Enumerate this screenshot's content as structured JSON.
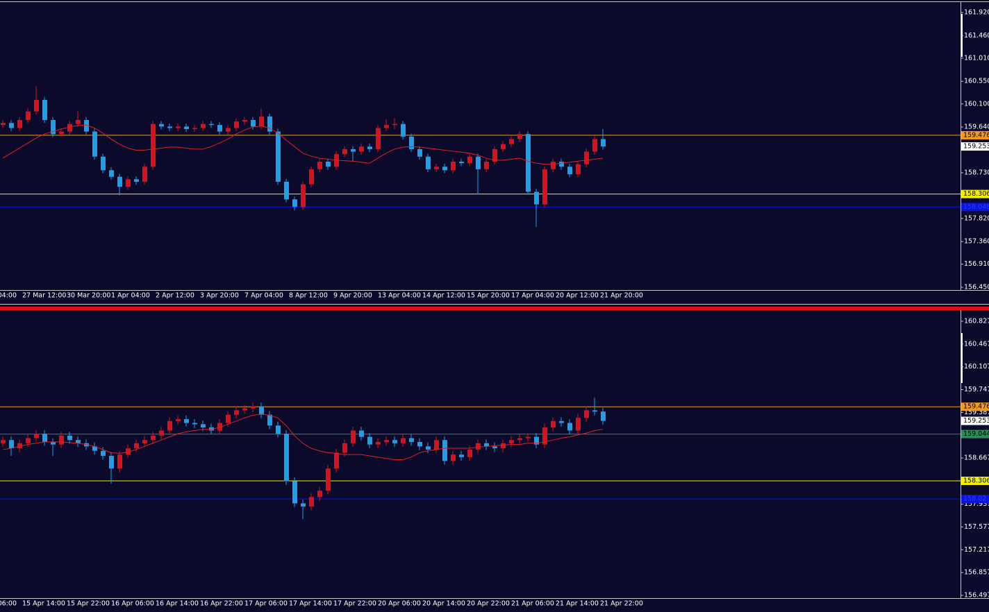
{
  "chart_data": [
    {
      "type": "candlestick",
      "up_color": "#d8121c",
      "down_color": "#1f9fe8",
      "ylim": [
        156.395,
        162.127
      ],
      "yticks": [
        {
          "value": 161.92,
          "label": "161.920"
        },
        {
          "value": 161.46,
          "label": "161.460"
        },
        {
          "value": 161.01,
          "label": "161.010"
        },
        {
          "value": 160.55,
          "label": "160.550"
        },
        {
          "value": 160.1,
          "label": "160.100"
        },
        {
          "value": 159.64,
          "label": "159.640"
        },
        {
          "value": 158.73,
          "label": "158.730"
        },
        {
          "value": 157.82,
          "label": "157.820"
        },
        {
          "value": 157.36,
          "label": "157.360"
        },
        {
          "value": 156.91,
          "label": "156.910"
        },
        {
          "value": 156.45,
          "label": "156.450"
        }
      ],
      "x_labels": [
        "04:00",
        "27 Mar 12:00",
        "30 Mar 20:00",
        "1 Apr 04:00",
        "2 Apr 12:00",
        "3 Apr 20:00",
        "7 Apr 04:00",
        "8 Apr 12:00",
        "9 Apr 20:00",
        "13 Apr 04:00",
        "14 Apr 12:00",
        "15 Apr 20:00",
        "17 Apr 04:00",
        "20 Apr 12:00",
        "21 Apr 20:00"
      ],
      "open": [
        159.68,
        159.72,
        159.62,
        159.78,
        159.95,
        160.18,
        159.78,
        159.5,
        159.55,
        159.7,
        159.78,
        159.55,
        159.05,
        158.78,
        158.65,
        158.45,
        158.6,
        158.55,
        158.85,
        159.7,
        159.65,
        159.62,
        159.65,
        159.6,
        159.62,
        159.7,
        159.68,
        159.55,
        159.62,
        159.75,
        159.78,
        159.65,
        159.85,
        159.55,
        158.55,
        158.2,
        158.05,
        158.5,
        158.8,
        158.95,
        158.85,
        159.1,
        159.2,
        159.15,
        159.25,
        159.2,
        159.62,
        159.68,
        159.7,
        159.45,
        159.2,
        159.05,
        158.8,
        158.85,
        158.78,
        158.95,
        158.92,
        159.05,
        158.8,
        158.95,
        159.2,
        159.3,
        159.4,
        159.5,
        158.35,
        158.1,
        158.8,
        158.95,
        158.85,
        158.7,
        158.9,
        159.15,
        159.4
      ],
      "high": [
        159.78,
        159.78,
        159.84,
        160.01,
        160.45,
        160.24,
        159.84,
        159.61,
        159.76,
        159.95,
        159.84,
        159.61,
        159.11,
        158.84,
        158.71,
        158.66,
        158.66,
        158.91,
        159.76,
        159.76,
        159.71,
        159.71,
        159.71,
        159.68,
        159.76,
        159.76,
        159.74,
        159.68,
        159.81,
        159.84,
        159.84,
        160.0,
        159.91,
        159.61,
        158.61,
        158.26,
        158.56,
        158.86,
        159.01,
        159.01,
        159.16,
        159.26,
        159.26,
        159.31,
        159.31,
        159.68,
        159.8,
        159.82,
        159.76,
        159.51,
        159.26,
        159.11,
        158.91,
        158.91,
        159.01,
        159.01,
        159.11,
        159.11,
        159.01,
        159.26,
        159.36,
        159.46,
        159.56,
        159.56,
        158.41,
        158.86,
        159.01,
        159.01,
        158.91,
        158.96,
        159.21,
        159.46,
        159.6
      ],
      "low": [
        159.62,
        159.56,
        159.56,
        159.72,
        159.89,
        159.72,
        159.44,
        159.44,
        159.49,
        159.64,
        159.49,
        158.99,
        158.72,
        158.59,
        158.28,
        158.39,
        158.49,
        158.49,
        158.79,
        159.59,
        159.56,
        159.56,
        159.54,
        159.54,
        159.56,
        159.62,
        159.49,
        159.49,
        159.56,
        159.69,
        159.59,
        159.59,
        159.49,
        158.49,
        158.14,
        157.98,
        157.99,
        158.44,
        158.74,
        158.79,
        158.79,
        159.04,
        158.95,
        159.09,
        159.14,
        159.14,
        159.56,
        159.6,
        159.39,
        159.14,
        158.99,
        158.74,
        158.74,
        158.72,
        158.72,
        158.86,
        158.86,
        158.3,
        158.74,
        158.89,
        159.14,
        159.24,
        159.34,
        158.29,
        157.65,
        158.04,
        158.74,
        158.79,
        158.64,
        158.64,
        158.84,
        159.09,
        159.19
      ],
      "close": [
        159.72,
        159.62,
        159.78,
        159.95,
        160.18,
        159.78,
        159.5,
        159.55,
        159.7,
        159.78,
        159.55,
        159.05,
        158.78,
        158.65,
        158.45,
        158.6,
        158.55,
        158.85,
        159.7,
        159.65,
        159.62,
        159.65,
        159.6,
        159.62,
        159.7,
        159.68,
        159.55,
        159.62,
        159.75,
        159.78,
        159.65,
        159.85,
        159.55,
        158.55,
        158.2,
        158.05,
        158.5,
        158.8,
        158.95,
        158.85,
        159.1,
        159.2,
        159.15,
        159.25,
        159.2,
        159.62,
        159.68,
        159.7,
        159.45,
        159.2,
        159.05,
        158.8,
        158.85,
        158.78,
        158.95,
        158.92,
        159.05,
        158.8,
        158.95,
        159.2,
        159.3,
        159.4,
        159.5,
        158.35,
        158.1,
        158.8,
        158.95,
        158.85,
        158.7,
        158.9,
        159.15,
        159.4,
        159.253
      ],
      "ma": {
        "color": "#e02020",
        "values": [
          159.02,
          159.12,
          159.22,
          159.32,
          159.42,
          159.5,
          159.55,
          159.6,
          159.64,
          159.67,
          159.68,
          159.62,
          159.52,
          159.4,
          159.3,
          159.22,
          159.18,
          159.18,
          159.2,
          159.22,
          159.24,
          159.24,
          159.22,
          159.2,
          159.2,
          159.25,
          159.32,
          159.4,
          159.5,
          159.58,
          159.64,
          159.66,
          159.62,
          159.52,
          159.38,
          159.25,
          159.12,
          159.06,
          159.02,
          159.0,
          158.98,
          158.97,
          158.96,
          158.94,
          158.92,
          159.02,
          159.12,
          159.2,
          159.24,
          159.25,
          159.24,
          159.22,
          159.2,
          159.18,
          159.16,
          159.14,
          159.12,
          159.08,
          159.02,
          158.98,
          158.98,
          159.0,
          159.02,
          158.96,
          158.92,
          158.9,
          158.9,
          158.92,
          158.94,
          158.96,
          158.98,
          159.0,
          159.02
        ]
      },
      "price_lines": [
        {
          "value": 159.476,
          "color": "#f39a1c",
          "text_color": "#000000"
        },
        {
          "value": 159.253,
          "color": "#ffffff",
          "text_color": "#000000",
          "line": false
        },
        {
          "value": 158.306,
          "color": "#f0f000",
          "text_color": "#000000"
        },
        {
          "value": 158.048,
          "color": "#0a14d8",
          "text_color": "#2a3cff"
        }
      ]
    },
    {
      "type": "candlestick",
      "up_color": "#d8121c",
      "down_color": "#1f9fe8",
      "ylim": [
        156.453,
        160.991
      ],
      "yticks": [
        160.827,
        160.467,
        160.107,
        159.747,
        159.387,
        158.667,
        157.937,
        157.577,
        157.217,
        156.857,
        156.497
      ],
      "x_labels": [
        "06:00",
        "15 Apr 14:00",
        "15 Apr 22:00",
        "16 Apr 06:00",
        "16 Apr 14:00",
        "16 Apr 22:00",
        "17 Apr 06:00",
        "17 Apr 14:00",
        "17 Apr 22:00",
        "20 Apr 06:00",
        "20 Apr 14:00",
        "20 Apr 22:00",
        "21 Apr 06:00",
        "21 Apr 14:00",
        "21 Apr 22:00"
      ],
      "open": [
        158.9,
        158.95,
        158.82,
        158.9,
        158.98,
        159.05,
        158.92,
        158.88,
        159.02,
        158.95,
        158.9,
        158.85,
        158.78,
        158.7,
        158.5,
        158.72,
        158.82,
        158.9,
        158.95,
        159.02,
        159.1,
        159.25,
        159.28,
        159.22,
        159.2,
        159.15,
        159.1,
        159.22,
        159.35,
        159.42,
        159.45,
        159.48,
        159.35,
        159.18,
        159.05,
        158.3,
        157.95,
        157.9,
        158.05,
        158.15,
        158.5,
        158.75,
        158.9,
        159.1,
        159.0,
        158.88,
        158.92,
        158.95,
        158.9,
        158.98,
        158.92,
        158.85,
        158.8,
        158.95,
        158.62,
        158.72,
        158.68,
        158.8,
        158.9,
        158.85,
        158.82,
        158.9,
        158.95,
        158.98,
        159.0,
        158.88,
        159.15,
        159.25,
        159.22,
        159.1,
        159.3,
        159.42,
        159.4
      ],
      "high": [
        159.01,
        159.01,
        158.96,
        159.04,
        159.11,
        159.11,
        158.98,
        159.08,
        159.08,
        159.01,
        158.96,
        158.91,
        158.84,
        158.76,
        158.78,
        158.88,
        158.96,
        159.01,
        159.08,
        159.16,
        159.31,
        159.34,
        159.34,
        159.28,
        159.26,
        159.21,
        159.28,
        159.41,
        159.48,
        159.51,
        159.54,
        159.54,
        159.41,
        159.24,
        159.11,
        158.36,
        158.01,
        158.11,
        158.21,
        158.56,
        158.81,
        158.96,
        159.16,
        159.16,
        159.06,
        158.98,
        159.01,
        159.01,
        159.04,
        159.04,
        158.98,
        158.91,
        159.01,
        159.01,
        158.78,
        158.78,
        158.86,
        158.96,
        158.96,
        158.91,
        158.96,
        159.01,
        159.04,
        159.06,
        159.06,
        159.21,
        159.31,
        159.31,
        159.28,
        159.36,
        159.48,
        159.62,
        159.46
      ],
      "low": [
        158.84,
        158.7,
        158.76,
        158.84,
        158.92,
        158.86,
        158.7,
        158.82,
        158.89,
        158.84,
        158.79,
        158.72,
        158.64,
        158.26,
        158.44,
        158.66,
        158.76,
        158.84,
        158.89,
        158.96,
        159.04,
        159.19,
        159.16,
        159.14,
        159.09,
        159.04,
        159.04,
        159.16,
        159.29,
        159.36,
        159.39,
        159.29,
        159.12,
        158.99,
        158.24,
        157.89,
        157.7,
        157.84,
        157.99,
        158.09,
        158.44,
        158.69,
        158.84,
        158.94,
        158.82,
        158.82,
        158.86,
        158.84,
        158.84,
        158.86,
        158.79,
        158.74,
        158.74,
        158.56,
        158.56,
        158.62,
        158.62,
        158.74,
        158.79,
        158.76,
        158.76,
        158.84,
        158.89,
        158.92,
        158.82,
        158.82,
        159.09,
        159.16,
        159.04,
        159.04,
        159.24,
        159.34,
        159.19
      ],
      "close": [
        158.95,
        158.82,
        158.9,
        158.98,
        159.05,
        158.92,
        158.88,
        159.02,
        158.95,
        158.9,
        158.85,
        158.78,
        158.7,
        158.5,
        158.72,
        158.82,
        158.9,
        158.95,
        159.02,
        159.1,
        159.25,
        159.28,
        159.22,
        159.2,
        159.15,
        159.1,
        159.22,
        159.35,
        159.42,
        159.45,
        159.48,
        159.35,
        159.18,
        159.05,
        158.3,
        157.95,
        157.9,
        158.05,
        158.15,
        158.5,
        158.75,
        158.9,
        159.1,
        159.0,
        158.88,
        158.92,
        158.95,
        158.9,
        158.98,
        158.92,
        158.85,
        158.8,
        158.95,
        158.62,
        158.72,
        158.68,
        158.8,
        158.9,
        158.85,
        158.82,
        158.9,
        158.95,
        158.98,
        159.0,
        158.88,
        159.15,
        159.25,
        159.22,
        159.1,
        159.3,
        159.42,
        159.4,
        159.253
      ],
      "ma": {
        "color": "#e02020",
        "values": [
          158.8,
          158.82,
          158.85,
          158.88,
          158.9,
          158.92,
          158.92,
          158.92,
          158.91,
          158.9,
          158.88,
          158.85,
          158.8,
          158.75,
          158.74,
          158.76,
          158.8,
          158.85,
          158.9,
          158.95,
          159.0,
          159.05,
          159.08,
          159.1,
          159.12,
          159.12,
          159.15,
          159.2,
          159.25,
          159.3,
          159.34,
          159.36,
          159.34,
          159.3,
          159.18,
          159.02,
          158.9,
          158.82,
          158.78,
          158.75,
          158.74,
          158.72,
          158.72,
          158.72,
          158.7,
          158.68,
          158.66,
          158.64,
          158.64,
          158.68,
          158.75,
          158.78,
          158.8,
          158.82,
          158.82,
          158.82,
          158.82,
          158.84,
          158.85,
          158.86,
          158.87,
          158.88,
          158.88,
          158.9,
          158.9,
          158.92,
          158.95,
          158.98,
          159.0,
          159.03,
          159.06,
          159.1,
          159.12
        ]
      },
      "price_lines": [
        {
          "value": 159.476,
          "color": "#f39a1c",
          "text_color": "#000000"
        },
        {
          "value": 159.253,
          "color": "#ffffff",
          "text_color": "#000000",
          "line": false
        },
        {
          "value": 159.044,
          "color": "#2e8b57",
          "text_color": "#000000"
        },
        {
          "value": 158.306,
          "color": "#f0f000",
          "text_color": "#000000"
        },
        {
          "value": 158.02,
          "color": "#0a14d8",
          "text_color": "#2a3cff"
        }
      ]
    }
  ]
}
